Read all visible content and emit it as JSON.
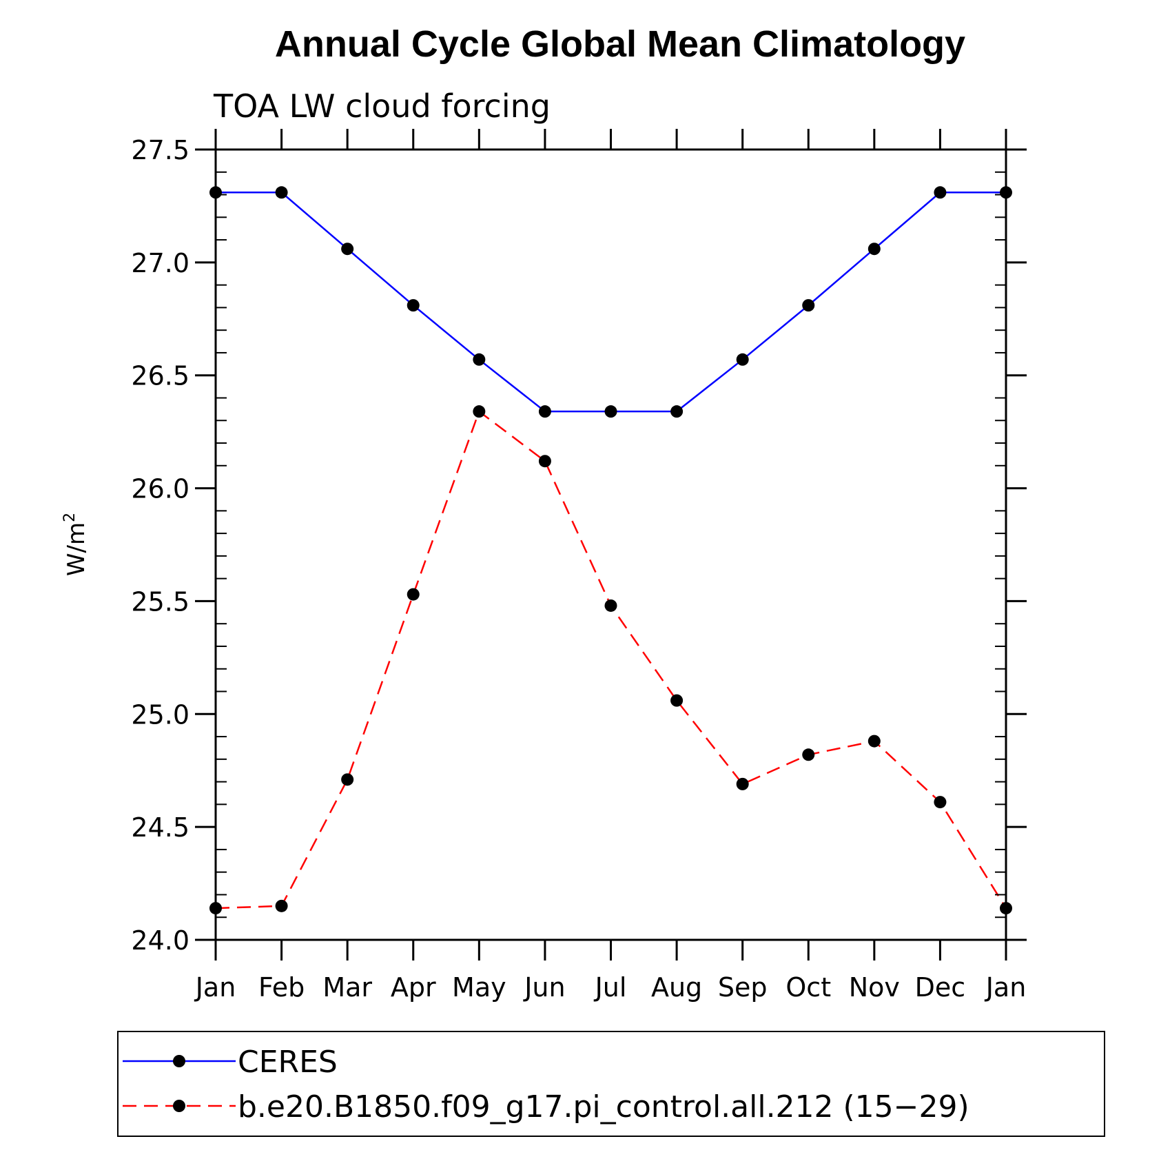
{
  "chart_data": {
    "type": "line",
    "title": "Annual Cycle Global Mean Climatology",
    "subtitle": "TOA LW cloud forcing",
    "ylabel": "W/m",
    "ylabel_superscript": "2",
    "xlabel": "",
    "categories": [
      "Jan",
      "Feb",
      "Mar",
      "Apr",
      "May",
      "Jun",
      "Jul",
      "Aug",
      "Sep",
      "Oct",
      "Nov",
      "Dec",
      "Jan"
    ],
    "ylim": [
      24.0,
      27.5
    ],
    "yticks": [
      "24.0",
      "24.5",
      "25.0",
      "25.5",
      "26.0",
      "26.5",
      "27.0",
      "27.5"
    ],
    "y_minor_step": 0.1,
    "grid": false,
    "legend_position": "bottom",
    "series": [
      {
        "name": "CERES",
        "color": "#0000ff",
        "line_style": "solid",
        "marker": "filled-circle",
        "values": [
          27.31,
          27.31,
          27.06,
          26.81,
          26.57,
          26.34,
          26.34,
          26.34,
          26.57,
          26.81,
          27.06,
          27.31,
          27.31
        ]
      },
      {
        "name": "b.e20.B1850.f09_g17.pi_control.all.212 (15−29)",
        "color": "#ff0000",
        "line_style": "dashed",
        "marker": "filled-circle",
        "values": [
          24.14,
          24.15,
          24.71,
          25.53,
          26.34,
          26.12,
          25.48,
          25.06,
          24.69,
          24.82,
          24.88,
          24.61,
          24.14
        ]
      }
    ]
  }
}
